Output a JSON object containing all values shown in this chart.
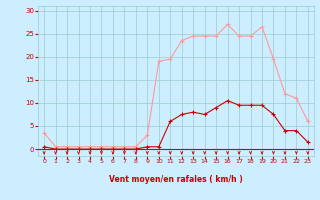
{
  "x": [
    0,
    1,
    2,
    3,
    4,
    5,
    6,
    7,
    8,
    9,
    10,
    11,
    12,
    13,
    14,
    15,
    16,
    17,
    18,
    19,
    20,
    21,
    22,
    23
  ],
  "wind_avg": [
    0.5,
    0,
    0,
    0,
    0,
    0,
    0,
    0,
    0,
    0.5,
    0.5,
    6,
    7.5,
    8,
    7.5,
    9,
    10.5,
    9.5,
    9.5,
    9.5,
    7.5,
    4,
    4,
    1.5
  ],
  "wind_gust": [
    3.5,
    0.5,
    0.5,
    0.5,
    0.5,
    0.5,
    0.5,
    0.5,
    0.5,
    3,
    19,
    19.5,
    23.5,
    24.5,
    24.5,
    24.5,
    27,
    24.5,
    24.5,
    26.5,
    19.5,
    12,
    11,
    6
  ],
  "bg_color": "#cceeff",
  "grid_color": "#99cccc",
  "avg_color": "#cc0000",
  "gust_color": "#ff9999",
  "xlabel": "Vent moyen/en rafales ( km/h )",
  "ylabel_ticks": [
    0,
    5,
    10,
    15,
    20,
    25,
    30
  ],
  "xlim": [
    -0.5,
    23.5
  ],
  "ylim": [
    -1.5,
    31
  ],
  "axis_label_color": "#cc0000",
  "tick_color": "#cc0000"
}
